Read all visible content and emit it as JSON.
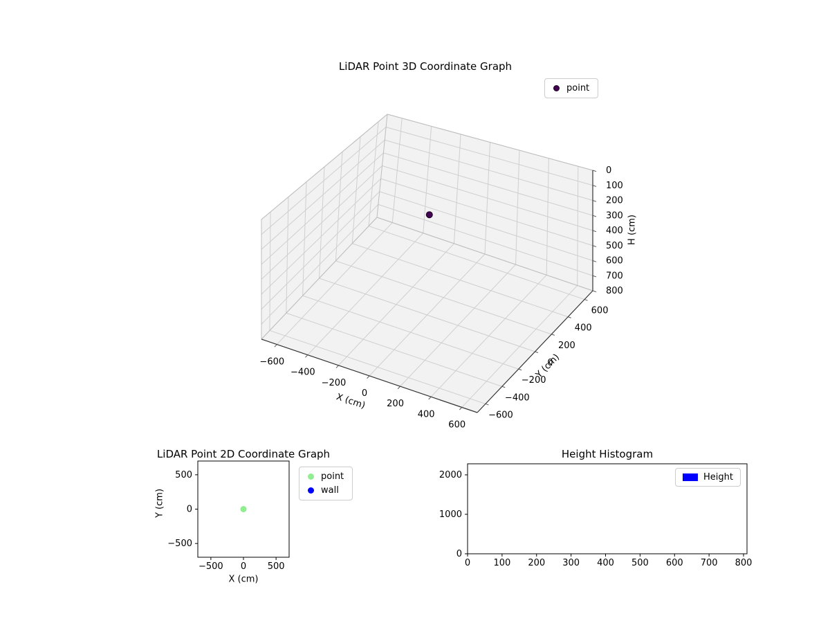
{
  "figure": {
    "background": "#ffffff"
  },
  "chart_data": [
    {
      "type": "scatter3d",
      "title": "LiDAR Point 3D Coordinate Graph",
      "xlabel": "X (cm)",
      "ylabel": "Y (cm)",
      "zlabel": "H (cm)",
      "xlim": [
        -700,
        700
      ],
      "ylim": [
        -700,
        700
      ],
      "zlim": [
        0,
        800
      ],
      "z_axis_inverted": true,
      "xticks": [
        -600,
        -400,
        -200,
        0,
        200,
        400,
        600
      ],
      "yticks": [
        -600,
        -400,
        -200,
        0,
        200,
        400,
        600
      ],
      "zticks": [
        0,
        100,
        200,
        300,
        400,
        500,
        600,
        700,
        800
      ],
      "legend": [
        {
          "label": "point",
          "color": "#440154"
        }
      ],
      "points": [
        {
          "x": 0,
          "y": 0,
          "h": 100,
          "color": "#440154"
        }
      ]
    },
    {
      "type": "scatter",
      "title": "LiDAR Point 2D Coordinate Graph",
      "xlabel": "X (cm)",
      "ylabel": "Y (cm)",
      "xlim": [
        -700,
        700
      ],
      "ylim": [
        -700,
        700
      ],
      "xticks": [
        -500,
        0,
        500
      ],
      "yticks": [
        -500,
        0,
        500
      ],
      "legend": [
        {
          "label": "point",
          "color": "#90ee90"
        },
        {
          "label": "wall",
          "color": "#0000ff"
        }
      ],
      "points": [
        {
          "x": 0,
          "y": 0,
          "series": "point",
          "color": "#90ee90"
        }
      ]
    },
    {
      "type": "bar",
      "title": "Height Histogram",
      "xlim": [
        0,
        810
      ],
      "ylim": [
        0,
        2280
      ],
      "xticks": [
        0,
        100,
        200,
        300,
        400,
        500,
        600,
        700,
        800
      ],
      "yticks": [
        0,
        1000,
        2000
      ],
      "legend": [
        {
          "label": "Height",
          "color": "#0000ff"
        }
      ],
      "bars": []
    }
  ]
}
